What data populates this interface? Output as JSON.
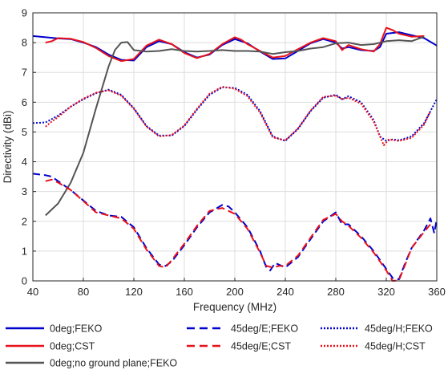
{
  "chart_data": {
    "type": "line",
    "title": "",
    "xlabel": "Frequency (MHz)",
    "ylabel": "Directivity (dBi)",
    "xlim": [
      40,
      360
    ],
    "ylim": [
      0,
      9
    ],
    "xticks": [
      40,
      80,
      120,
      160,
      200,
      240,
      280,
      320,
      360
    ],
    "yticks": [
      0,
      1,
      2,
      3,
      4,
      5,
      6,
      7,
      8,
      9
    ],
    "grid": true,
    "legend_position": "bottom",
    "series": [
      {
        "name": "0deg;FEKO",
        "color": "#0000cc",
        "style": "solid",
        "points": [
          [
            40,
            8.22
          ],
          [
            50,
            8.18
          ],
          [
            60,
            8.14
          ],
          [
            70,
            8.12
          ],
          [
            80,
            8.0
          ],
          [
            90,
            7.85
          ],
          [
            100,
            7.6
          ],
          [
            110,
            7.42
          ],
          [
            120,
            7.4
          ],
          [
            130,
            7.85
          ],
          [
            140,
            8.05
          ],
          [
            150,
            7.95
          ],
          [
            160,
            7.68
          ],
          [
            170,
            7.5
          ],
          [
            180,
            7.6
          ],
          [
            190,
            7.92
          ],
          [
            200,
            8.12
          ],
          [
            210,
            7.98
          ],
          [
            220,
            7.7
          ],
          [
            230,
            7.45
          ],
          [
            240,
            7.47
          ],
          [
            250,
            7.72
          ],
          [
            260,
            7.98
          ],
          [
            270,
            8.12
          ],
          [
            280,
            8.0
          ],
          [
            285,
            7.8
          ],
          [
            290,
            7.85
          ],
          [
            300,
            7.75
          ],
          [
            310,
            7.72
          ],
          [
            315,
            7.85
          ],
          [
            320,
            8.3
          ],
          [
            330,
            8.35
          ],
          [
            340,
            8.25
          ],
          [
            350,
            8.15
          ],
          [
            360,
            7.9
          ]
        ]
      },
      {
        "name": "0deg;CST",
        "color": "#e8121b",
        "style": "solid",
        "points": [
          [
            50,
            8.0
          ],
          [
            55,
            8.05
          ],
          [
            60,
            8.15
          ],
          [
            70,
            8.13
          ],
          [
            80,
            8.02
          ],
          [
            90,
            7.82
          ],
          [
            100,
            7.55
          ],
          [
            110,
            7.38
          ],
          [
            120,
            7.45
          ],
          [
            130,
            7.9
          ],
          [
            140,
            8.1
          ],
          [
            150,
            7.95
          ],
          [
            160,
            7.65
          ],
          [
            170,
            7.48
          ],
          [
            180,
            7.62
          ],
          [
            190,
            7.95
          ],
          [
            200,
            8.18
          ],
          [
            205,
            8.1
          ],
          [
            210,
            7.95
          ],
          [
            220,
            7.72
          ],
          [
            230,
            7.5
          ],
          [
            240,
            7.55
          ],
          [
            250,
            7.78
          ],
          [
            260,
            8.0
          ],
          [
            270,
            8.15
          ],
          [
            280,
            8.05
          ],
          [
            285,
            7.75
          ],
          [
            290,
            7.92
          ],
          [
            300,
            7.78
          ],
          [
            310,
            7.7
          ],
          [
            315,
            7.95
          ],
          [
            320,
            8.5
          ],
          [
            325,
            8.42
          ],
          [
            330,
            8.3
          ],
          [
            340,
            8.2
          ],
          [
            350,
            8.22
          ]
        ]
      },
      {
        "name": "0deg;no ground plane;FEKO",
        "color": "#545454",
        "style": "solid",
        "points": [
          [
            50,
            2.2
          ],
          [
            60,
            2.6
          ],
          [
            70,
            3.3
          ],
          [
            80,
            4.3
          ],
          [
            90,
            5.8
          ],
          [
            100,
            7.2
          ],
          [
            105,
            7.75
          ],
          [
            110,
            8.0
          ],
          [
            115,
            8.02
          ],
          [
            120,
            7.75
          ],
          [
            130,
            7.7
          ],
          [
            140,
            7.72
          ],
          [
            150,
            7.78
          ],
          [
            160,
            7.72
          ],
          [
            170,
            7.7
          ],
          [
            180,
            7.72
          ],
          [
            190,
            7.75
          ],
          [
            200,
            7.72
          ],
          [
            210,
            7.72
          ],
          [
            220,
            7.7
          ],
          [
            230,
            7.62
          ],
          [
            240,
            7.68
          ],
          [
            250,
            7.72
          ],
          [
            260,
            7.8
          ],
          [
            270,
            7.85
          ],
          [
            280,
            7.98
          ],
          [
            290,
            8.0
          ],
          [
            300,
            7.92
          ],
          [
            310,
            7.95
          ],
          [
            320,
            8.05
          ],
          [
            330,
            8.08
          ],
          [
            340,
            8.05
          ],
          [
            350,
            8.2
          ]
        ]
      },
      {
        "name": "45deg/E;FEKO",
        "color": "#0000cc",
        "style": "dashed",
        "points": [
          [
            40,
            3.6
          ],
          [
            50,
            3.55
          ],
          [
            55,
            3.5
          ],
          [
            60,
            3.35
          ],
          [
            70,
            3.05
          ],
          [
            80,
            2.7
          ],
          [
            90,
            2.35
          ],
          [
            100,
            2.2
          ],
          [
            110,
            2.15
          ],
          [
            120,
            1.8
          ],
          [
            130,
            1.1
          ],
          [
            140,
            0.55
          ],
          [
            145,
            0.5
          ],
          [
            150,
            0.65
          ],
          [
            160,
            1.2
          ],
          [
            170,
            1.8
          ],
          [
            180,
            2.3
          ],
          [
            190,
            2.55
          ],
          [
            195,
            2.5
          ],
          [
            200,
            2.3
          ],
          [
            210,
            1.8
          ],
          [
            220,
            1.0
          ],
          [
            225,
            0.45
          ],
          [
            228,
            0.35
          ],
          [
            232,
            0.6
          ],
          [
            240,
            0.45
          ],
          [
            250,
            0.8
          ],
          [
            260,
            1.4
          ],
          [
            270,
            2.0
          ],
          [
            280,
            2.3
          ],
          [
            285,
            1.9
          ],
          [
            290,
            1.9
          ],
          [
            300,
            1.5
          ],
          [
            310,
            1.0
          ],
          [
            320,
            0.4
          ],
          [
            325,
            0.1
          ],
          [
            330,
            0.05
          ],
          [
            335,
            0.6
          ],
          [
            340,
            1.1
          ],
          [
            350,
            1.7
          ],
          [
            355,
            2.1
          ],
          [
            358,
            1.6
          ],
          [
            360,
            2.1
          ]
        ]
      },
      {
        "name": "45deg/E;CST",
        "color": "#e8121b",
        "style": "dashed",
        "points": [
          [
            50,
            3.35
          ],
          [
            55,
            3.4
          ],
          [
            60,
            3.3
          ],
          [
            70,
            3.05
          ],
          [
            80,
            2.68
          ],
          [
            90,
            2.3
          ],
          [
            100,
            2.2
          ],
          [
            110,
            2.1
          ],
          [
            120,
            1.75
          ],
          [
            130,
            1.05
          ],
          [
            140,
            0.5
          ],
          [
            145,
            0.45
          ],
          [
            150,
            0.7
          ],
          [
            160,
            1.25
          ],
          [
            170,
            1.85
          ],
          [
            180,
            2.35
          ],
          [
            190,
            2.45
          ],
          [
            200,
            2.25
          ],
          [
            210,
            1.75
          ],
          [
            220,
            0.95
          ],
          [
            225,
            0.5
          ],
          [
            230,
            0.45
          ],
          [
            235,
            0.5
          ],
          [
            240,
            0.5
          ],
          [
            250,
            0.85
          ],
          [
            260,
            1.45
          ],
          [
            270,
            2.05
          ],
          [
            280,
            2.25
          ],
          [
            285,
            2.0
          ],
          [
            290,
            1.85
          ],
          [
            300,
            1.45
          ],
          [
            310,
            0.95
          ],
          [
            320,
            0.35
          ],
          [
            325,
            0.0
          ],
          [
            330,
            0.02
          ],
          [
            335,
            0.55
          ],
          [
            340,
            1.1
          ],
          [
            350,
            1.65
          ],
          [
            355,
            1.9
          ]
        ]
      },
      {
        "name": "45deg/H;FEKO",
        "color": "#0000cc",
        "style": "dotted",
        "points": [
          [
            40,
            5.3
          ],
          [
            50,
            5.32
          ],
          [
            60,
            5.55
          ],
          [
            70,
            5.85
          ],
          [
            80,
            6.1
          ],
          [
            90,
            6.3
          ],
          [
            100,
            6.42
          ],
          [
            110,
            6.25
          ],
          [
            120,
            5.8
          ],
          [
            130,
            5.2
          ],
          [
            140,
            4.88
          ],
          [
            150,
            4.88
          ],
          [
            160,
            5.2
          ],
          [
            170,
            5.75
          ],
          [
            180,
            6.25
          ],
          [
            190,
            6.5
          ],
          [
            200,
            6.48
          ],
          [
            210,
            6.25
          ],
          [
            220,
            5.7
          ],
          [
            230,
            4.85
          ],
          [
            240,
            4.7
          ],
          [
            250,
            5.1
          ],
          [
            260,
            5.7
          ],
          [
            270,
            6.15
          ],
          [
            280,
            6.25
          ],
          [
            285,
            6.1
          ],
          [
            290,
            6.2
          ],
          [
            300,
            6.0
          ],
          [
            310,
            5.4
          ],
          [
            315,
            4.85
          ],
          [
            320,
            4.7
          ],
          [
            325,
            4.75
          ],
          [
            330,
            4.72
          ],
          [
            340,
            4.85
          ],
          [
            350,
            5.3
          ],
          [
            360,
            6.1
          ]
        ]
      },
      {
        "name": "45deg/H;CST",
        "color": "#e8121b",
        "style": "dotted",
        "points": [
          [
            50,
            5.18
          ],
          [
            55,
            5.35
          ],
          [
            60,
            5.5
          ],
          [
            70,
            5.85
          ],
          [
            80,
            6.12
          ],
          [
            90,
            6.32
          ],
          [
            100,
            6.4
          ],
          [
            110,
            6.22
          ],
          [
            120,
            5.78
          ],
          [
            130,
            5.18
          ],
          [
            140,
            4.85
          ],
          [
            150,
            4.9
          ],
          [
            160,
            5.22
          ],
          [
            170,
            5.78
          ],
          [
            180,
            6.28
          ],
          [
            190,
            6.52
          ],
          [
            200,
            6.45
          ],
          [
            210,
            6.2
          ],
          [
            220,
            5.65
          ],
          [
            230,
            4.82
          ],
          [
            240,
            4.72
          ],
          [
            250,
            5.12
          ],
          [
            260,
            5.72
          ],
          [
            270,
            6.18
          ],
          [
            280,
            6.22
          ],
          [
            285,
            6.1
          ],
          [
            290,
            6.15
          ],
          [
            300,
            5.95
          ],
          [
            310,
            5.35
          ],
          [
            318,
            4.55
          ],
          [
            322,
            4.75
          ],
          [
            330,
            4.7
          ],
          [
            340,
            4.8
          ],
          [
            350,
            5.25
          ],
          [
            355,
            5.7
          ]
        ]
      }
    ]
  }
}
